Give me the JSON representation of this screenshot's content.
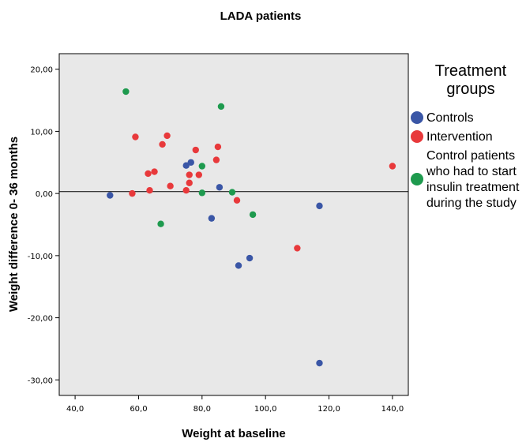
{
  "chart_data": {
    "type": "scatter",
    "title": "LADA patients",
    "xlabel": "Weight at baseline",
    "ylabel": "Weight difference 0- 36 months",
    "xlim": [
      35,
      145
    ],
    "ylim": [
      -32.5,
      22.5
    ],
    "x_ticks": [
      40,
      60,
      80,
      100,
      120,
      140
    ],
    "x_tick_labels": [
      "40,0",
      "60,0",
      "80,0",
      "100,0",
      "120,0",
      "140,0"
    ],
    "y_ticks": [
      20,
      10,
      0,
      -10,
      -20,
      -30
    ],
    "y_tick_labels": [
      "20,00",
      "10,00",
      "0,00",
      "-10,00",
      "-20,00",
      "-30,00"
    ],
    "reference_line_y": 0.3,
    "grid": false,
    "plot_background": "#e8e8e8",
    "legend": {
      "title_lines": [
        "Treatment",
        "groups"
      ],
      "placement": "right",
      "entries": [
        {
          "label_lines": [
            "Controls"
          ],
          "color": "#3a56a6"
        },
        {
          "label_lines": [
            "Intervention"
          ],
          "color": "#e8393b"
        },
        {
          "label_lines": [
            "Control patients",
            "who had to start",
            "insulin treatment",
            "during the study"
          ],
          "color": "#1e9a4e"
        }
      ]
    },
    "series": [
      {
        "name": "Controls",
        "color": "#3a56a6",
        "points": [
          [
            51,
            -0.3
          ],
          [
            75,
            4.5
          ],
          [
            76.5,
            5
          ],
          [
            83,
            -4
          ],
          [
            85.5,
            1
          ],
          [
            91.5,
            -11.6
          ],
          [
            95,
            -10.4
          ],
          [
            117,
            -2
          ],
          [
            117,
            -27.3
          ]
        ]
      },
      {
        "name": "Intervention",
        "color": "#e8393b",
        "points": [
          [
            58,
            0
          ],
          [
            59,
            9.1
          ],
          [
            63,
            3.2
          ],
          [
            63.5,
            0.5
          ],
          [
            65,
            3.5
          ],
          [
            67.5,
            7.9
          ],
          [
            69,
            9.3
          ],
          [
            70,
            1.2
          ],
          [
            75,
            0.5
          ],
          [
            76,
            1.7
          ],
          [
            76,
            3
          ],
          [
            78,
            7
          ],
          [
            79,
            3
          ],
          [
            84.5,
            5.4
          ],
          [
            85,
            7.5
          ],
          [
            91,
            -1.1
          ],
          [
            110,
            -8.8
          ],
          [
            140,
            4.4
          ]
        ]
      },
      {
        "name": "Control patients who had to start insulin treatment during the study",
        "color": "#1e9a4e",
        "points": [
          [
            56,
            16.4
          ],
          [
            67,
            -4.9
          ],
          [
            80,
            4.4
          ],
          [
            80,
            0.1
          ],
          [
            86,
            14
          ],
          [
            89.5,
            0.2
          ],
          [
            96,
            -3.4
          ]
        ]
      }
    ]
  }
}
